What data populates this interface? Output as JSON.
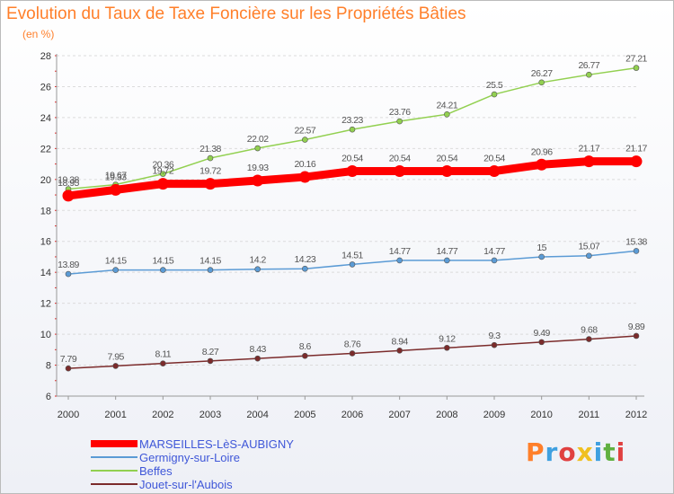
{
  "chart_data": {
    "type": "line",
    "title": "Evolution du Taux de Taxe Foncière sur les Propriétés Bâties",
    "ylabel": "(en %)",
    "xlabel": "",
    "ylim": [
      6,
      28
    ],
    "yticks": [
      6,
      8,
      10,
      12,
      14,
      16,
      18,
      20,
      22,
      24,
      26,
      28
    ],
    "categories": [
      "2000",
      "2001",
      "2002",
      "2003",
      "2004",
      "2005",
      "2006",
      "2007",
      "2008",
      "2009",
      "2010",
      "2011",
      "2012"
    ],
    "series": [
      {
        "name": "MARSEILLES-LèS-AUBIGNY",
        "color": "#ff0000",
        "values": [
          18.95,
          19.33,
          19.72,
          19.72,
          19.93,
          20.16,
          20.54,
          20.54,
          20.54,
          20.54,
          20.96,
          21.17,
          21.17
        ],
        "labels": [
          "18.95",
          "19.33",
          "19.72",
          "19.72",
          "19.93",
          "20.16",
          "20.54",
          "20.54",
          "20.54",
          "20.54",
          "20.96",
          "21.17",
          "21.17"
        ]
      },
      {
        "name": "Germigny-sur-Loire",
        "color": "#5b9bd5",
        "values": [
          13.89,
          14.15,
          14.15,
          14.15,
          14.2,
          14.23,
          14.51,
          14.77,
          14.77,
          14.77,
          15,
          15.07,
          15.38
        ],
        "labels": [
          "13.89",
          "14.15",
          "14.15",
          "14.15",
          "14.2",
          "14.23",
          "14.51",
          "14.77",
          "14.77",
          "14.77",
          "15",
          "15.07",
          "15.38"
        ]
      },
      {
        "name": "Beffes",
        "color": "#92d050",
        "values": [
          19.38,
          19.67,
          20.36,
          21.38,
          22.02,
          22.57,
          23.23,
          23.76,
          24.21,
          25.5,
          26.27,
          26.77,
          27.21
        ],
        "labels": [
          "19.38",
          "19.67",
          "20.36",
          "21.38",
          "22.02",
          "22.57",
          "23.23",
          "23.76",
          "24.21",
          "25.5",
          "26.27",
          "26.77",
          "27.21"
        ]
      },
      {
        "name": "Jouet-sur-l'Aubois",
        "color": "#7b2b2b",
        "values": [
          7.79,
          7.95,
          8.11,
          8.27,
          8.43,
          8.6,
          8.76,
          8.94,
          9.12,
          9.3,
          9.49,
          9.68,
          9.89
        ],
        "labels": [
          "7.79",
          "7.95",
          "8.11",
          "8.27",
          "8.43",
          "8.6",
          "8.76",
          "8.94",
          "9.12",
          "9.3",
          "9.49",
          "9.68",
          "9.89"
        ]
      }
    ]
  },
  "logo": {
    "letters": [
      "P",
      "r",
      "o",
      "x",
      "i",
      "t",
      "i"
    ],
    "colors": [
      "#ff7f2a",
      "#3fa0e0",
      "#e04040",
      "#f0c020",
      "#3fa0e0",
      "#60b040",
      "#e04040"
    ]
  }
}
